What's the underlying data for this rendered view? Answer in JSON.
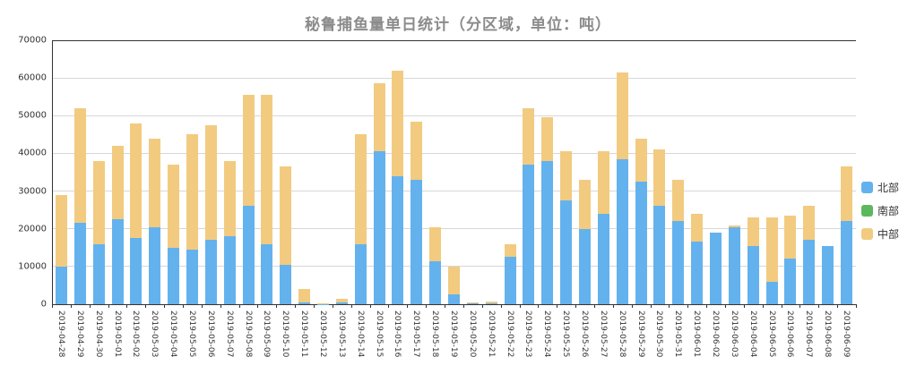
{
  "title": "秘鲁捕鱼量单日统计（分区域，单位：吨）",
  "legend": [
    {
      "label": "北部",
      "color": "#63b2ee"
    },
    {
      "label": "南部",
      "color": "#5cb85c"
    },
    {
      "label": "中部",
      "color": "#f2cb80"
    }
  ],
  "chart_data": {
    "type": "bar",
    "stacked": true,
    "title": "秘鲁捕鱼量单日统计（分区域，单位：吨）",
    "xlabel": "",
    "ylabel": "",
    "ylim": [
      0,
      70000
    ],
    "yticks": [
      0,
      10000,
      20000,
      30000,
      40000,
      50000,
      60000,
      70000
    ],
    "grid": true,
    "legend_position": "right",
    "categories": [
      "2019-04-28",
      "2019-04-29",
      "2019-04-30",
      "2019-05-01",
      "2019-05-02",
      "2019-05-03",
      "2019-05-04",
      "2019-05-05",
      "2019-05-06",
      "2019-05-07",
      "2019-05-08",
      "2019-05-09",
      "2019-05-10",
      "2019-05-11",
      "2019-05-12",
      "2019-05-13",
      "2019-05-14",
      "2019-05-15",
      "2019-05-16",
      "2019-05-17",
      "2019-05-18",
      "2019-05-19",
      "2019-05-20",
      "2019-05-21",
      "2019-05-22",
      "2019-05-23",
      "2019-05-24",
      "2019-05-25",
      "2019-05-26",
      "2019-05-27",
      "2019-05-28",
      "2019-05-29",
      "2019-05-30",
      "2019-05-31",
      "2019-06-01",
      "2019-06-02",
      "2019-06-03",
      "2019-06-04",
      "2019-06-05",
      "2019-06-06",
      "2019-06-07",
      "2019-06-08",
      "2019-06-09"
    ],
    "series": [
      {
        "name": "北部",
        "color": "#63b2ee",
        "values": [
          10000,
          21500,
          16000,
          22500,
          17500,
          20500,
          15000,
          14500,
          17000,
          18000,
          26000,
          16000,
          10500,
          500,
          100,
          400,
          16000,
          40500,
          34000,
          33000,
          11500,
          2500,
          200,
          300,
          12500,
          37000,
          38000,
          27500,
          20000,
          24000,
          38500,
          32500,
          26000,
          22000,
          16500,
          19000,
          20500,
          15500,
          6000,
          12000,
          17000,
          15500,
          22000
        ]
      },
      {
        "name": "南部",
        "color": "#5cb85c",
        "values": [
          0,
          0,
          0,
          0,
          0,
          0,
          0,
          0,
          0,
          0,
          0,
          0,
          0,
          0,
          0,
          0,
          0,
          0,
          0,
          0,
          0,
          0,
          0,
          0,
          0,
          0,
          0,
          0,
          0,
          0,
          0,
          0,
          0,
          0,
          0,
          0,
          0,
          0,
          0,
          0,
          0,
          0,
          0
        ]
      },
      {
        "name": "中部",
        "color": "#f2cb80",
        "values": [
          19000,
          30500,
          22000,
          19500,
          30500,
          23500,
          22000,
          30500,
          30500,
          20000,
          29500,
          39500,
          26000,
          3500,
          200,
          1100,
          29000,
          18000,
          28000,
          15500,
          9000,
          7500,
          300,
          400,
          3500,
          15000,
          11500,
          13000,
          13000,
          16500,
          23000,
          11500,
          15000,
          11000,
          7500,
          0,
          500,
          7500,
          17000,
          11500,
          9000,
          0,
          14500
        ]
      }
    ]
  }
}
